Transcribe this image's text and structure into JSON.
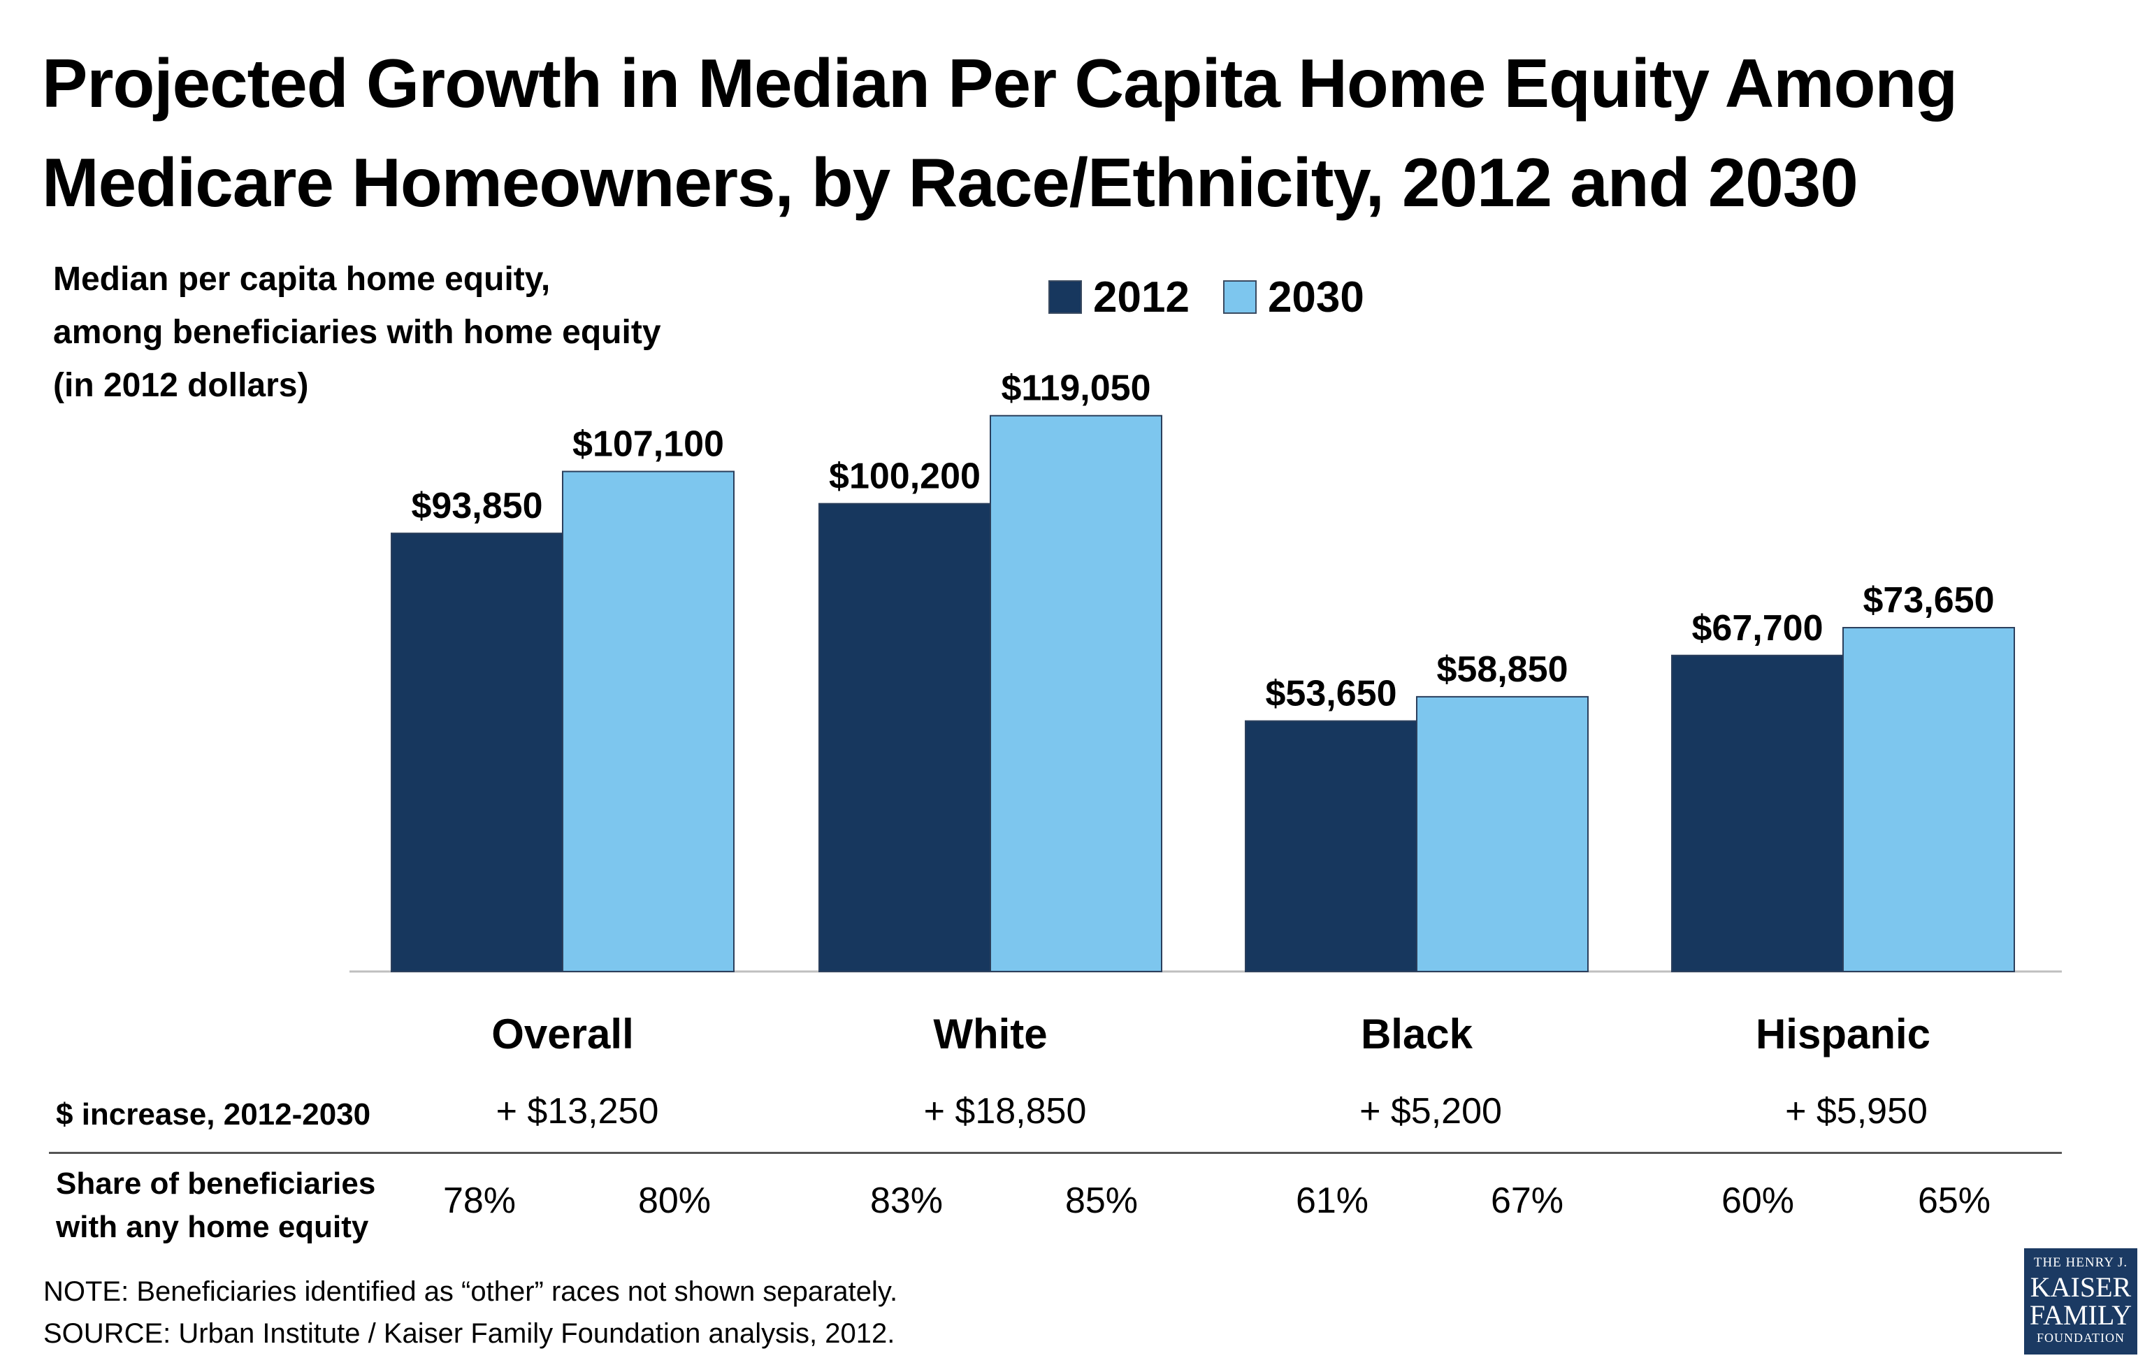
{
  "title": {
    "line1": "Projected Growth in Median Per Capita Home Equity Among",
    "line2": "Medicare Homeowners, by Race/Ethnicity, 2012 and 2030"
  },
  "ylabel": {
    "line1": "Median per capita home equity,",
    "line2": "among beneficiaries with home equity",
    "line3": "(in 2012 dollars)"
  },
  "legend": [
    {
      "label": "2012",
      "color": "#17375e"
    },
    {
      "label": "2030",
      "color": "#7dc6ee"
    }
  ],
  "chart_data": {
    "type": "bar",
    "categories": [
      "Overall",
      "White",
      "Black",
      "Hispanic"
    ],
    "series": [
      {
        "name": "2012",
        "values": [
          93850,
          100200,
          53650,
          67700
        ],
        "labels": [
          "$93,850",
          "$100,200",
          "$53,650",
          "$67,700"
        ]
      },
      {
        "name": "2030",
        "values": [
          107100,
          119050,
          58850,
          73650
        ],
        "labels": [
          "$107,100",
          "$119,050",
          "$58,850",
          "$73,650"
        ]
      }
    ],
    "ylim": [
      0,
      125000
    ],
    "colors": [
      "#17375e",
      "#7dc6ee"
    ]
  },
  "table": {
    "increase_label": "$ increase, 2012-2030",
    "increase_values": [
      "+ $13,250",
      "+ $18,850",
      "+ $5,200",
      "+ $5,950"
    ],
    "share_label_line1": "Share of beneficiaries",
    "share_label_line2": "with any home equity",
    "share_values": [
      [
        "78%",
        "80%"
      ],
      [
        "83%",
        "85%"
      ],
      [
        "61%",
        "67%"
      ],
      [
        "60%",
        "65%"
      ]
    ]
  },
  "footnotes": {
    "note": "NOTE: Beneficiaries identified as “other” races not shown separately.",
    "source": "SOURCE: Urban Institute / Kaiser Family Foundation analysis, 2012."
  },
  "logo": {
    "line1": "THE HENRY J.",
    "line2": "KAISER",
    "line3": "FAMILY",
    "line4": "FOUNDATION"
  }
}
